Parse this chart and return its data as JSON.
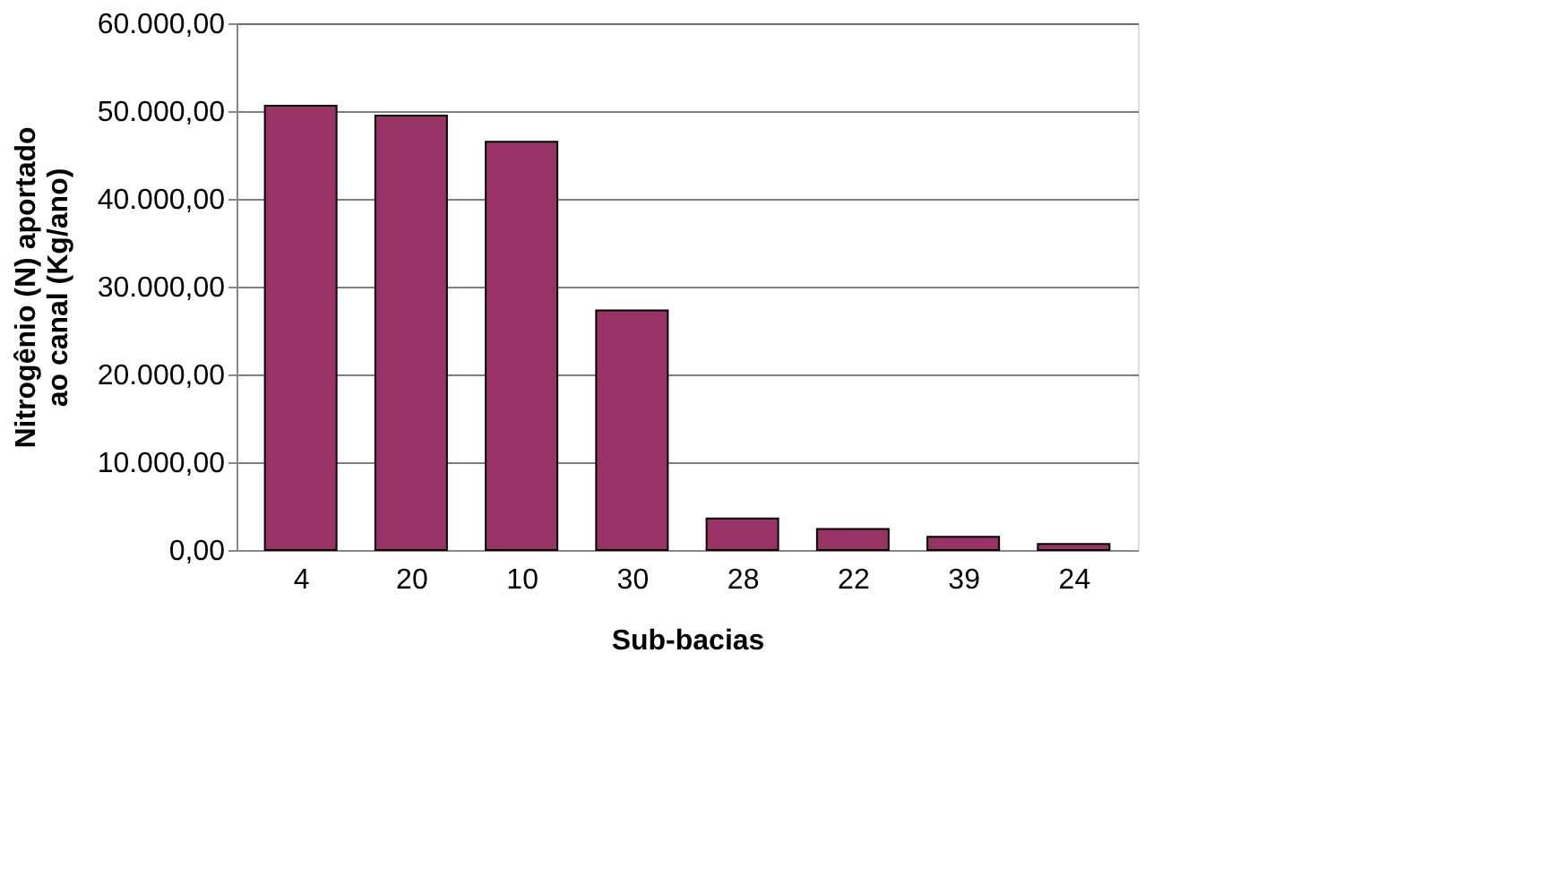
{
  "chart_data": {
    "type": "bar",
    "xlabel": "Sub-bacias",
    "ylabel": "Nitrogênio (N) aportado\nao canal (Kg/ano)",
    "categories": [
      "4",
      "20",
      "10",
      "30",
      "28",
      "22",
      "39",
      "24"
    ],
    "values": [
      50600,
      49500,
      46500,
      27300,
      3600,
      2400,
      1500,
      700
    ],
    "color": "#993366",
    "ylim": [
      0,
      60000
    ],
    "yticks": [
      {
        "value": 0,
        "label": "0,00"
      },
      {
        "value": 10000,
        "label": "10.000,00"
      },
      {
        "value": 20000,
        "label": "20.000,00"
      },
      {
        "value": 30000,
        "label": "30.000,00"
      },
      {
        "value": 40000,
        "label": "40.000,00"
      },
      {
        "value": 50000,
        "label": "50.000,00"
      },
      {
        "value": 60000,
        "label": "60.000,00"
      }
    ],
    "grid": "y"
  }
}
